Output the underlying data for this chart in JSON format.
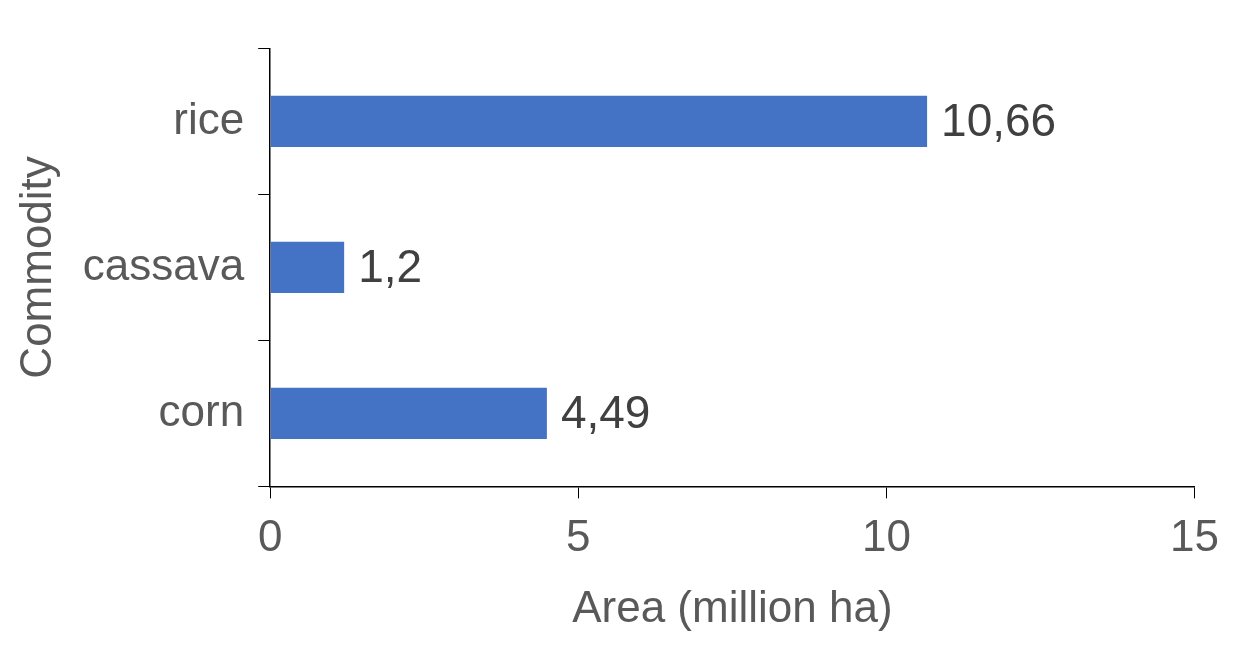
{
  "chart_data": {
    "type": "bar",
    "orientation": "horizontal",
    "xlabel": "Area (million ha)",
    "ylabel": "Commodity",
    "categories": [
      "rice",
      "cassava",
      "corn"
    ],
    "values": [
      10.66,
      1.2,
      4.49
    ],
    "value_labels": [
      "10,66",
      "1,2",
      "4,49"
    ],
    "color": "#4472c4",
    "xlim": [
      0,
      15
    ],
    "xticks": [
      0,
      5,
      10,
      15
    ],
    "grid": false,
    "legend": false
  }
}
